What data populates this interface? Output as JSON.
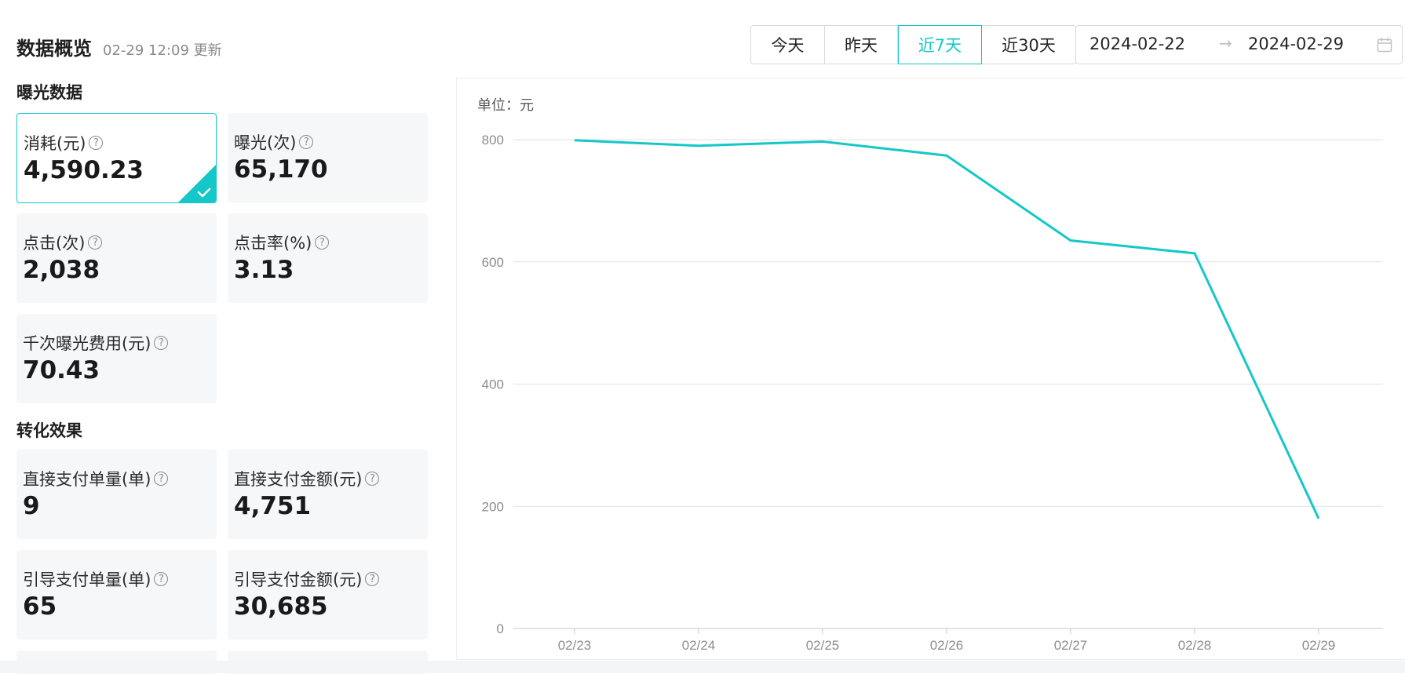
{
  "header": {
    "title": "数据概览",
    "updated": "02-29 12:09 更新"
  },
  "sections": {
    "exposure": "曝光数据",
    "conversion": "转化效果"
  },
  "metrics": [
    {
      "label": "消耗(元)",
      "value": "4,590.23",
      "active": true
    },
    {
      "label": "曝光(次)",
      "value": "65,170"
    },
    {
      "label": "点击(次)",
      "value": "2,038"
    },
    {
      "label": "点击率(%)",
      "value": "3.13"
    },
    {
      "label": "千次曝光费用(元)",
      "value": "70.43"
    },
    {
      "label": "直接支付单量(单)",
      "value": "9"
    },
    {
      "label": "直接支付金额(元)",
      "value": "4,751"
    },
    {
      "label": "引导支付单量(单)",
      "value": "65"
    },
    {
      "label": "引导支付金额(元)",
      "value": "30,685"
    }
  ],
  "help_icon_text": "?",
  "range": {
    "options": [
      "今天",
      "昨天",
      "近7天",
      "近30天"
    ],
    "selected": "近7天",
    "start_date": "2024-02-22",
    "end_date": "2024-02-29",
    "arrow": "→"
  },
  "colors": {
    "accent": "#14c7c8",
    "card_bg": "#f6f7f9",
    "grid": "#e0e0e0"
  },
  "chart_data": {
    "type": "line",
    "unit_label": "单位：元",
    "categories": [
      "02/23",
      "02/24",
      "02/25",
      "02/26",
      "02/27",
      "02/28",
      "02/29"
    ],
    "values": [
      799,
      790,
      797,
      774,
      635,
      614,
      180
    ],
    "ylim": [
      0,
      800
    ],
    "yticks": [
      0,
      200,
      400,
      600,
      800
    ],
    "grid": true,
    "legend": "none"
  }
}
